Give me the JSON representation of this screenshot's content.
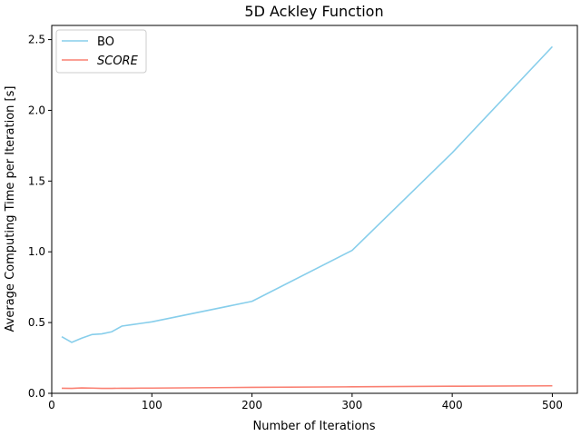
{
  "chart_data": {
    "type": "line",
    "title": "5D Ackley Function",
    "xlabel": "Number of Iterations",
    "ylabel": "Average Computing Time per Iteration [s]",
    "xlim": [
      0,
      525
    ],
    "ylim": [
      0,
      2.6
    ],
    "xticks": [
      0,
      100,
      200,
      300,
      400,
      500
    ],
    "yticks": [
      0.0,
      0.5,
      1.0,
      1.5,
      2.0,
      2.5
    ],
    "xtick_labels": [
      "0",
      "100",
      "200",
      "300",
      "400",
      "500"
    ],
    "ytick_labels": [
      "0.0",
      "0.5",
      "1.0",
      "1.5",
      "2.0",
      "2.5"
    ],
    "grid": false,
    "legend_position": "top-left",
    "series": [
      {
        "name": "BO",
        "color": "#87ceeb",
        "italic": false,
        "x": [
          10,
          20,
          30,
          40,
          50,
          60,
          70,
          80,
          90,
          100,
          200,
          300,
          400,
          500
        ],
        "y": [
          0.4,
          0.36,
          0.39,
          0.415,
          0.42,
          0.435,
          0.475,
          0.485,
          0.495,
          0.505,
          0.65,
          1.01,
          1.7,
          2.45
        ]
      },
      {
        "name": "SCORE",
        "color": "#fa8072",
        "italic": true,
        "x": [
          10,
          20,
          30,
          40,
          50,
          60,
          70,
          80,
          90,
          100,
          200,
          300,
          400,
          500
        ],
        "y": [
          0.036,
          0.035,
          0.038,
          0.037,
          0.035,
          0.035,
          0.036,
          0.036,
          0.037,
          0.037,
          0.042,
          0.046,
          0.05,
          0.053
        ]
      }
    ]
  }
}
